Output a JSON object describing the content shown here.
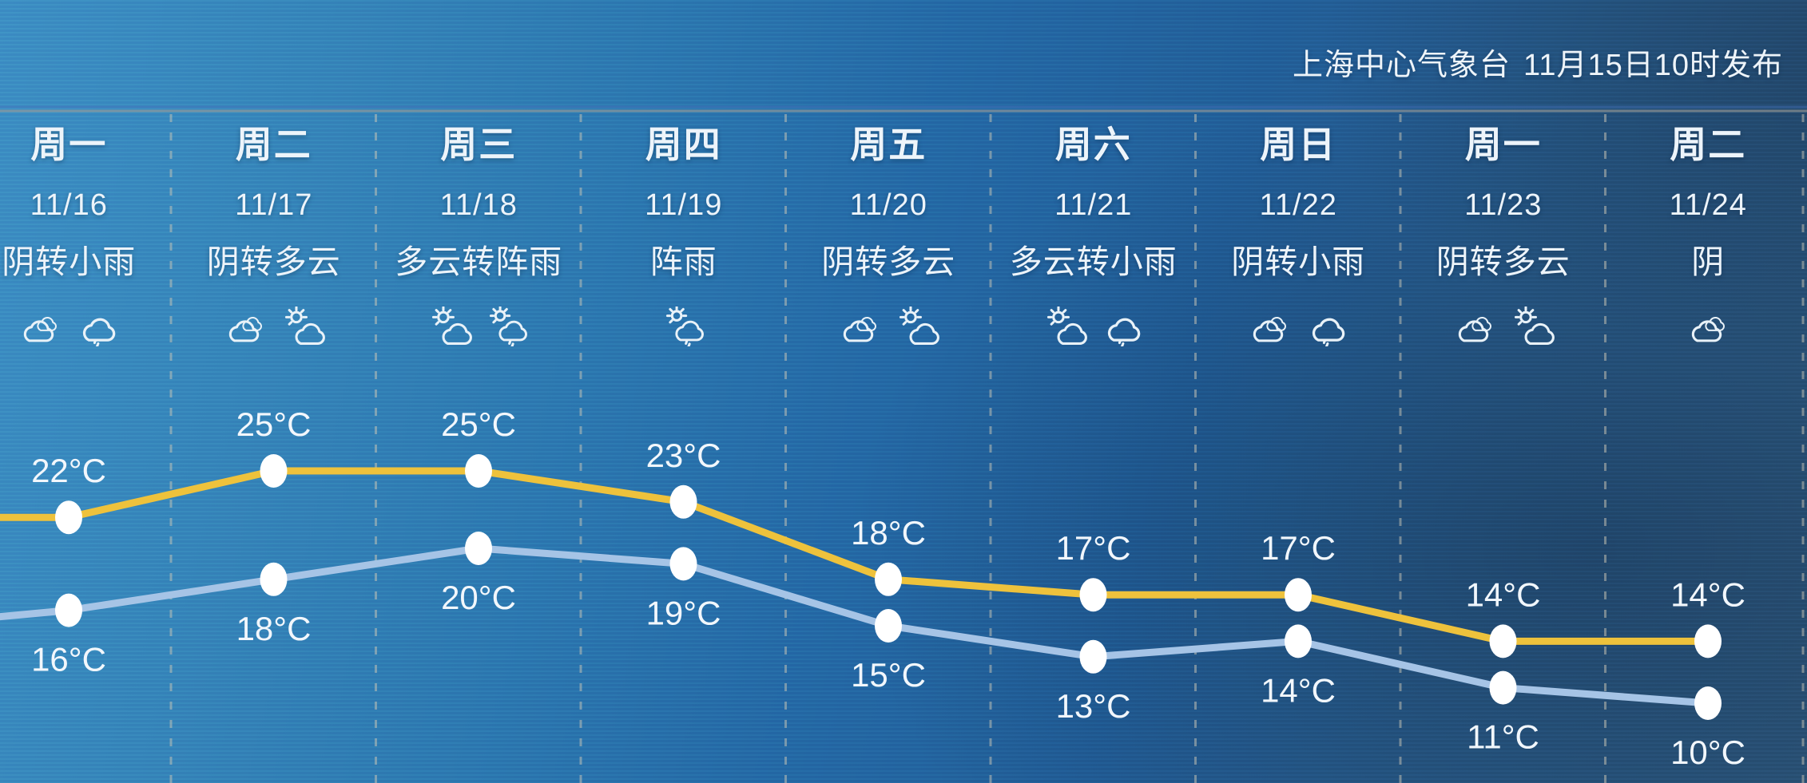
{
  "header": {
    "agency": "上海中心气象台",
    "published": "11月15日10时发布"
  },
  "days": [
    {
      "name": "周一",
      "date": "11/16",
      "condition": "阴转小雨",
      "icons": [
        "cloud",
        "cloud-rain"
      ]
    },
    {
      "name": "周二",
      "date": "11/17",
      "condition": "阴转多云",
      "icons": [
        "cloud",
        "sun-cloud"
      ]
    },
    {
      "name": "周三",
      "date": "11/18",
      "condition": "多云转阵雨",
      "icons": [
        "sun-cloud",
        "sun-cloud-rain"
      ]
    },
    {
      "name": "周四",
      "date": "11/19",
      "condition": "阵雨",
      "icons": [
        "sun-cloud-rain"
      ]
    },
    {
      "name": "周五",
      "date": "11/20",
      "condition": "阴转多云",
      "icons": [
        "cloud",
        "sun-cloud"
      ]
    },
    {
      "name": "周六",
      "date": "11/21",
      "condition": "多云转小雨",
      "icons": [
        "sun-cloud",
        "cloud-rain"
      ]
    },
    {
      "name": "周日",
      "date": "11/22",
      "condition": "阴转小雨",
      "icons": [
        "cloud",
        "cloud-rain"
      ]
    },
    {
      "name": "周一",
      "date": "11/23",
      "condition": "阴转多云",
      "icons": [
        "cloud",
        "sun-cloud"
      ]
    },
    {
      "name": "周二",
      "date": "11/24",
      "condition": "阴",
      "icons": [
        "cloud"
      ]
    }
  ],
  "chart_data": {
    "type": "line",
    "categories": [
      "11/16",
      "11/17",
      "11/18",
      "11/19",
      "11/20",
      "11/21",
      "11/22",
      "11/23",
      "11/24"
    ],
    "series": [
      {
        "name": "high",
        "values": [
          22,
          25,
          25,
          23,
          18,
          17,
          17,
          14,
          14
        ],
        "color": "#eec23c"
      },
      {
        "name": "low",
        "values": [
          16,
          18,
          20,
          19,
          15,
          13,
          14,
          11,
          10
        ],
        "color": "#a6c4e6"
      }
    ],
    "label_suffix": "°C",
    "unit": "°C",
    "title": "",
    "xlabel": "",
    "ylabel": "",
    "legend": "none",
    "grid": "vertical-dashed-day-separators",
    "note": "lines continue off the left edge from previous day"
  },
  "colors": {
    "high_line": "#eec23c",
    "low_line": "#a6c4e6",
    "dot": "#ffffff",
    "text": "#edf4fa",
    "grid_dash": "rgba(205,200,182,0.5)"
  }
}
